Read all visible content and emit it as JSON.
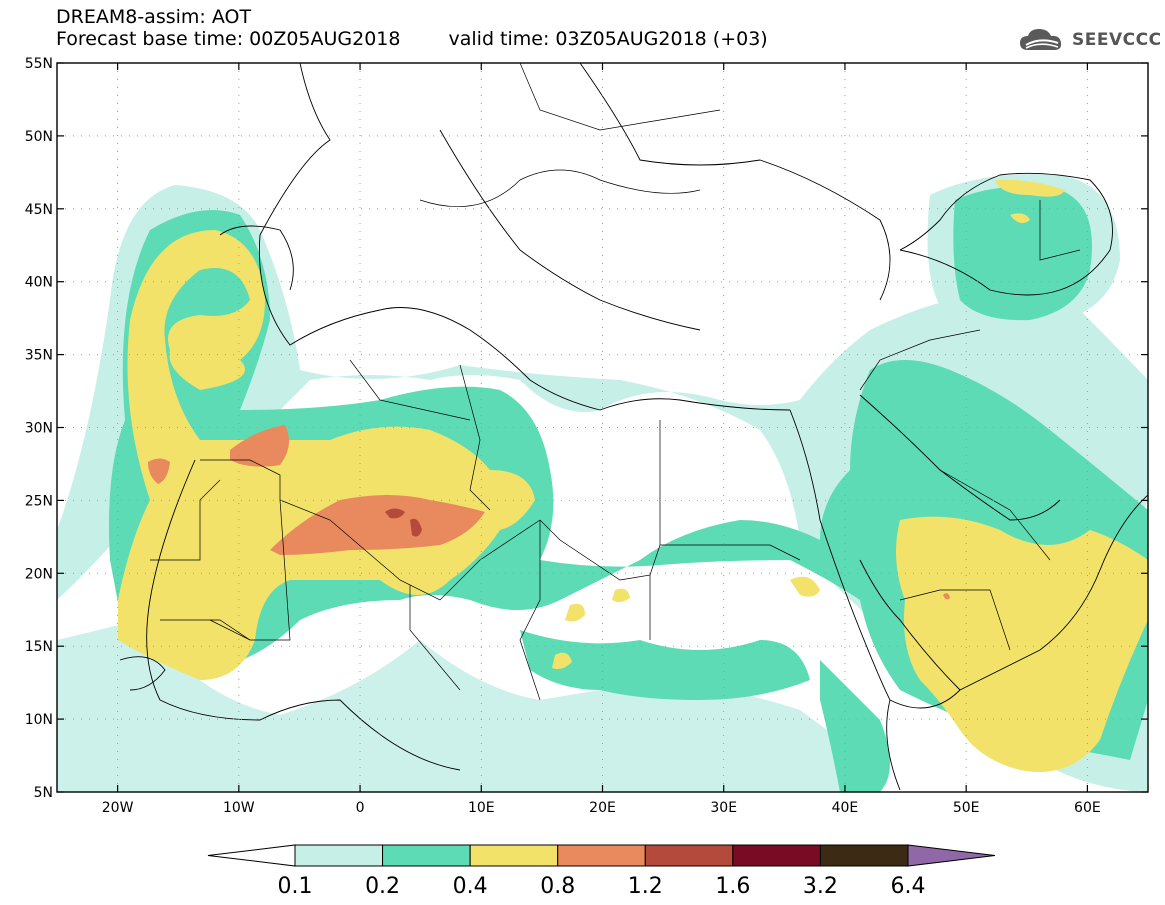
{
  "header": {
    "title": "DREAM8-assim: AOT",
    "base_time_label": "Forecast base time: 00Z05AUG2018",
    "valid_time_label": "valid time: 03Z05AUG2018 (+03)"
  },
  "logo": {
    "text": "SEEVCCC",
    "icon": "cloud-icon"
  },
  "map": {
    "lon_range": [
      -25,
      65
    ],
    "lat_range": [
      5,
      55
    ],
    "lat_ticks": [
      {
        "value": 55,
        "label": "55N"
      },
      {
        "value": 50,
        "label": "50N"
      },
      {
        "value": 45,
        "label": "45N"
      },
      {
        "value": 40,
        "label": "40N"
      },
      {
        "value": 35,
        "label": "35N"
      },
      {
        "value": 30,
        "label": "30N"
      },
      {
        "value": 25,
        "label": "25N"
      },
      {
        "value": 20,
        "label": "20N"
      },
      {
        "value": 15,
        "label": "15N"
      },
      {
        "value": 10,
        "label": "10N"
      },
      {
        "value": 5,
        "label": "5N"
      }
    ],
    "lon_ticks": [
      {
        "value": -20,
        "label": "20W"
      },
      {
        "value": -10,
        "label": "10W"
      },
      {
        "value": 0,
        "label": "0"
      },
      {
        "value": 10,
        "label": "10E"
      },
      {
        "value": 20,
        "label": "20E"
      },
      {
        "value": 30,
        "label": "30E"
      },
      {
        "value": 40,
        "label": "40E"
      },
      {
        "value": 50,
        "label": "50E"
      },
      {
        "value": 60,
        "label": "60E"
      }
    ],
    "grid": "dotted"
  },
  "colorbar": {
    "levels": [
      "0.1",
      "0.2",
      "0.4",
      "0.8",
      "1.2",
      "1.6",
      "3.2",
      "6.4"
    ],
    "colors": [
      "#ffffff",
      "#c6efe8",
      "#5ddbb4",
      "#f2e26a",
      "#e8895e",
      "#b44a3b",
      "#7a0b25",
      "#3d2a14",
      "#9068a8"
    ]
  }
}
